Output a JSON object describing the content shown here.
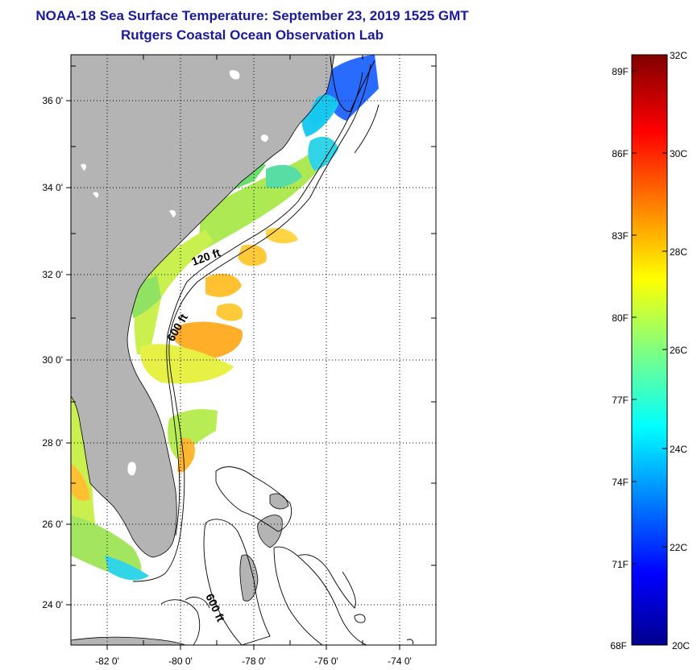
{
  "header": {
    "title": "NOAA-18 Sea Surface Temperature:  September 23, 2019 1525 GMT",
    "subtitle": "Rutgers Coastal Ocean Observation Lab"
  },
  "map": {
    "lon_ticks": [
      "-82 0'",
      "-80 0'",
      "-78 0'",
      "-76 0'",
      "-74 0'"
    ],
    "lat_ticks": [
      "36 0'",
      "34 0'",
      "32 0'",
      "30 0'",
      "28 0'",
      "26 0'",
      "24 0'"
    ],
    "contour_labels": [
      "120 ft",
      "600 ft",
      "600 ft"
    ],
    "land_color": "#b4b4b4",
    "ocean_color": "#ffffff"
  },
  "colorbar": {
    "fahrenheit_labels": [
      "89F",
      "86F",
      "83F",
      "80F",
      "77F",
      "74F",
      "71F",
      "68F"
    ],
    "celsius_labels": [
      "32C",
      "30C",
      "28C",
      "26C",
      "24C",
      "22C",
      "20C"
    ],
    "colormap": "jet",
    "min_c": 20,
    "max_c": 32
  }
}
